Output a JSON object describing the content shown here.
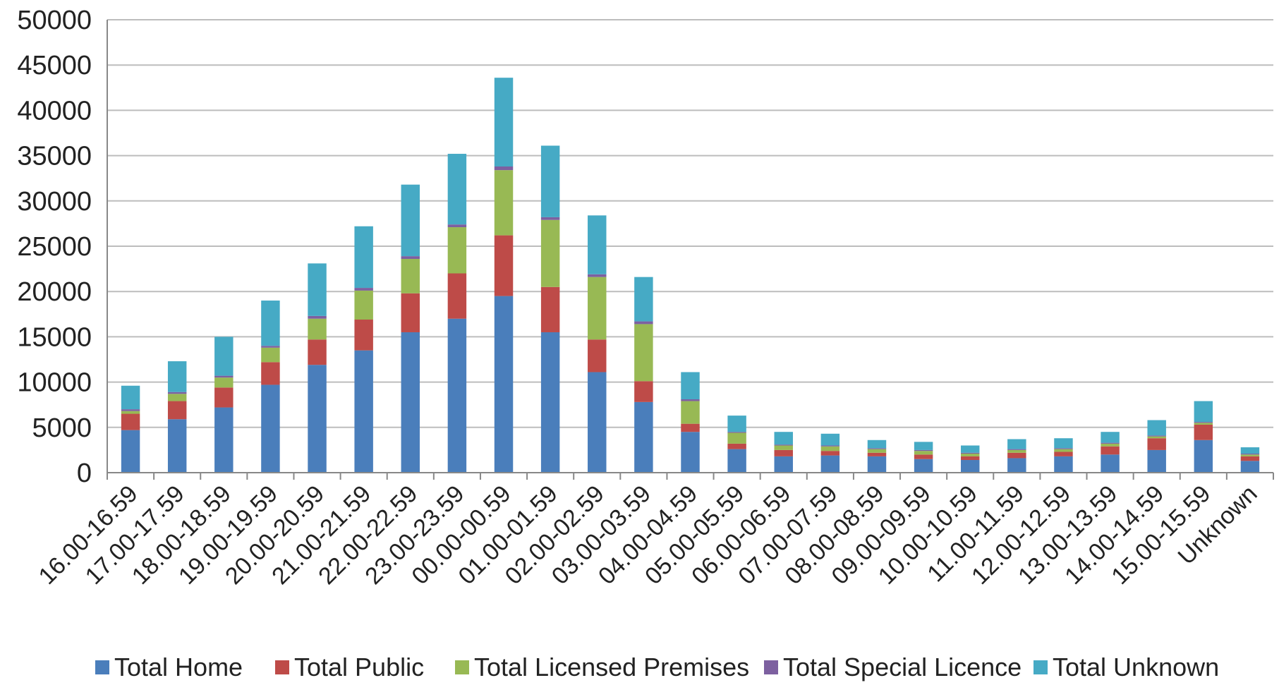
{
  "chart_data": {
    "type": "bar",
    "stacked": true,
    "title": "",
    "xlabel": "",
    "ylabel": "",
    "ylim": [
      0,
      50000
    ],
    "yticks": [
      0,
      5000,
      10000,
      15000,
      20000,
      25000,
      30000,
      35000,
      40000,
      45000,
      50000
    ],
    "grid": true,
    "legend_position": "bottom",
    "categories": [
      "16.00-16.59",
      "17.00-17.59",
      "18.00-18.59",
      "19.00-19.59",
      "20.00-20.59",
      "21.00-21.59",
      "22.00-22.59",
      "23.00-23.59",
      "00.00-00.59",
      "01.00-01.59",
      "02.00-02.59",
      "03.00-03.59",
      "04.00-04.59",
      "05.00-05.59",
      "06.00-06.59",
      "07.00-07.59",
      "08.00-08.59",
      "09.00-09.59",
      "10.00-10.59",
      "11.00-11.59",
      "12.00-12.59",
      "13.00-13.59",
      "14.00-14.59",
      "15.00-15.59",
      "Unknown"
    ],
    "series": [
      {
        "name": "Total Home",
        "color": "#4a7ebb",
        "values": [
          4700,
          5900,
          7200,
          9700,
          11900,
          13500,
          15500,
          17000,
          19500,
          15500,
          11100,
          7800,
          4500,
          2600,
          1800,
          1900,
          1800,
          1500,
          1400,
          1600,
          1800,
          2000,
          2500,
          3600,
          1300
        ]
      },
      {
        "name": "Total Public",
        "color": "#be4b48",
        "values": [
          1800,
          2000,
          2200,
          2500,
          2800,
          3400,
          4300,
          5000,
          6700,
          5000,
          3600,
          2300,
          900,
          600,
          700,
          500,
          400,
          500,
          400,
          600,
          500,
          900,
          1300,
          1700,
          500
        ]
      },
      {
        "name": "Total Licensed Premises",
        "color": "#98b954",
        "values": [
          300,
          800,
          1100,
          1600,
          2300,
          3200,
          3800,
          5100,
          7200,
          7400,
          6900,
          6300,
          2500,
          1200,
          500,
          500,
          400,
          400,
          300,
          300,
          300,
          300,
          200,
          200,
          200
        ]
      },
      {
        "name": "Total Special Licence",
        "color": "#7d60a0",
        "values": [
          200,
          200,
          200,
          200,
          300,
          300,
          300,
          300,
          400,
          300,
          300,
          300,
          200,
          100,
          100,
          100,
          100,
          100,
          100,
          100,
          100,
          100,
          100,
          100,
          100
        ]
      },
      {
        "name": "Total Unknown",
        "color": "#46aac5",
        "values": [
          2600,
          3400,
          4300,
          5000,
          5800,
          6800,
          7900,
          7800,
          9800,
          7900,
          6500,
          4900,
          3000,
          1800,
          1400,
          1300,
          900,
          900,
          800,
          1100,
          1100,
          1200,
          1700,
          2300,
          700
        ]
      }
    ]
  }
}
